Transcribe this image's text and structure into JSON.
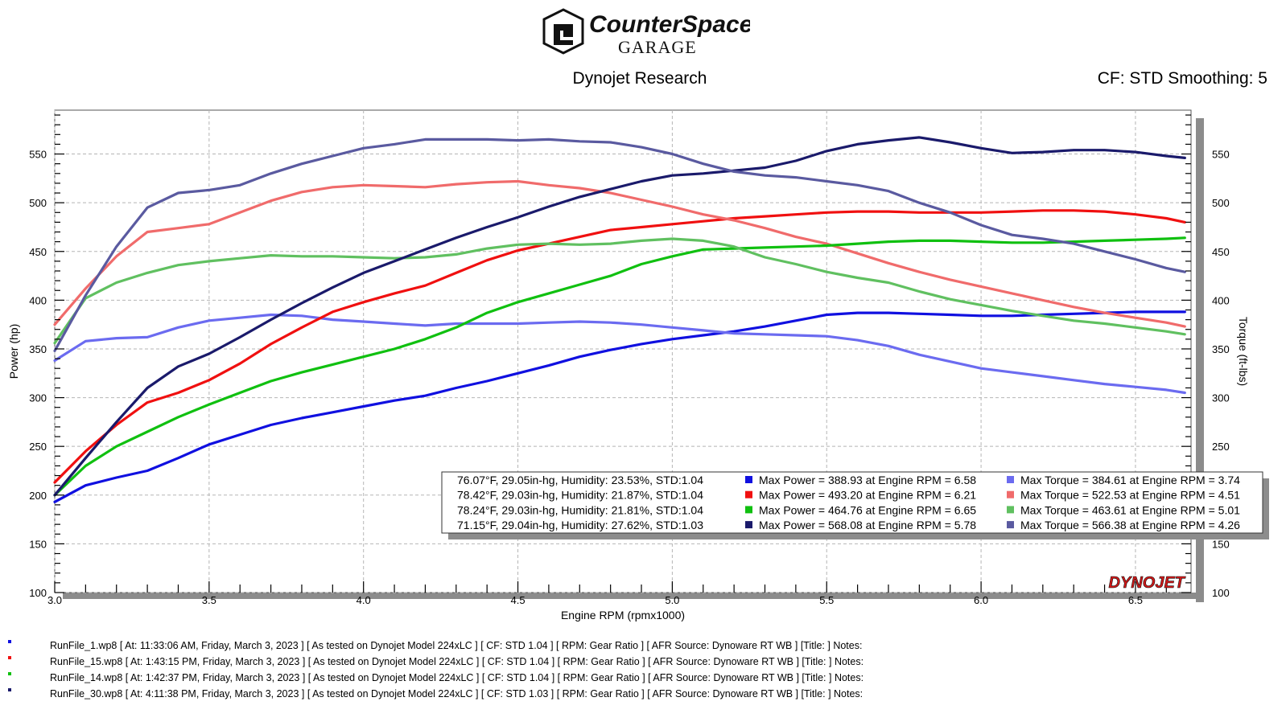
{
  "header": {
    "logo_line1": "CounterSpace",
    "logo_line2": "GARAGE",
    "subtitle": "Dynojet Research",
    "cf_info": "CF: STD Smoothing: 5"
  },
  "watermark": "DYNOJET",
  "colors": {
    "run1_power": "#1010e0",
    "run1_torque": "#6b6bf0",
    "run15_power": "#f01010",
    "run15_torque": "#f06b6b",
    "run14_power": "#10c010",
    "run14_torque": "#60c060",
    "run30_power": "#1a1a6b",
    "run30_torque": "#5a5aa0"
  },
  "chart_data": {
    "type": "line",
    "title": "",
    "xlabel": "Engine RPM (rpmx1000)",
    "ylabel": "Power (hp)",
    "y2label": "Torque (ft-lbs)",
    "xlim": [
      3.0,
      6.68
    ],
    "ylim": [
      100,
      595
    ],
    "xticks": [
      "3.0",
      "3.5",
      "4.0",
      "4.5",
      "5.0",
      "5.5",
      "6.0",
      "6.5"
    ],
    "yticks": [
      "100",
      "150",
      "200",
      "250",
      "300",
      "350",
      "400",
      "450",
      "500",
      "550"
    ],
    "grid": true,
    "x": [
      3.0,
      3.1,
      3.2,
      3.3,
      3.4,
      3.5,
      3.6,
      3.7,
      3.8,
      3.9,
      4.0,
      4.1,
      4.2,
      4.3,
      4.4,
      4.5,
      4.6,
      4.7,
      4.8,
      4.9,
      5.0,
      5.1,
      5.2,
      5.3,
      5.4,
      5.5,
      5.6,
      5.7,
      5.8,
      5.9,
      6.0,
      6.1,
      6.2,
      6.3,
      6.4,
      6.5,
      6.6,
      6.66
    ],
    "series": [
      {
        "color_key": "run1_power",
        "values": [
          193,
          210,
          218,
          225,
          238,
          252,
          262,
          272,
          279,
          285,
          291,
          297,
          302,
          310,
          317,
          325,
          333,
          342,
          349,
          355,
          360,
          364,
          368,
          373,
          379,
          385,
          387,
          387,
          386,
          385,
          384,
          384,
          385,
          386,
          387,
          388,
          388,
          388
        ]
      },
      {
        "color_key": "run1_torque",
        "values": [
          338,
          358,
          361,
          362,
          372,
          379,
          382,
          385,
          384,
          380,
          378,
          376,
          374,
          376,
          376,
          376,
          377,
          378,
          377,
          375,
          372,
          369,
          366,
          365,
          364,
          363,
          359,
          353,
          344,
          337,
          330,
          326,
          322,
          318,
          314,
          311,
          308,
          305
        ]
      },
      {
        "color_key": "run15_power",
        "values": [
          213,
          245,
          272,
          295,
          305,
          318,
          335,
          355,
          372,
          388,
          398,
          407,
          415,
          428,
          441,
          451,
          458,
          465,
          472,
          475,
          478,
          481,
          484,
          486,
          488,
          490,
          491,
          491,
          490,
          490,
          490,
          491,
          492,
          492,
          491,
          488,
          484,
          480
        ]
      },
      {
        "color_key": "run15_torque",
        "values": [
          375,
          412,
          445,
          470,
          474,
          478,
          490,
          502,
          511,
          516,
          518,
          517,
          516,
          519,
          521,
          522,
          518,
          515,
          510,
          503,
          496,
          488,
          482,
          474,
          465,
          458,
          448,
          438,
          429,
          421,
          414,
          407,
          400,
          393,
          387,
          382,
          377,
          373
        ]
      },
      {
        "color_key": "run14_power",
        "values": [
          200,
          230,
          250,
          265,
          280,
          293,
          305,
          317,
          326,
          334,
          342,
          350,
          360,
          372,
          387,
          398,
          407,
          416,
          425,
          437,
          445,
          452,
          453,
          454,
          455,
          456,
          458,
          460,
          461,
          461,
          460,
          459,
          459,
          460,
          461,
          462,
          463,
          464
        ]
      },
      {
        "color_key": "run14_torque",
        "values": [
          356,
          402,
          418,
          428,
          436,
          440,
          443,
          446,
          445,
          445,
          444,
          443,
          444,
          447,
          453,
          457,
          458,
          457,
          458,
          461,
          463,
          461,
          455,
          444,
          437,
          429,
          423,
          418,
          409,
          401,
          395,
          389,
          384,
          379,
          376,
          372,
          368,
          365
        ]
      },
      {
        "color_key": "run30_power",
        "values": [
          200,
          238,
          275,
          310,
          332,
          345,
          362,
          380,
          397,
          413,
          428,
          440,
          452,
          464,
          475,
          485,
          496,
          506,
          514,
          522,
          528,
          530,
          533,
          536,
          543,
          553,
          560,
          564,
          567,
          562,
          556,
          551,
          552,
          554,
          554,
          552,
          548,
          546
        ]
      },
      {
        "color_key": "run30_torque",
        "values": [
          348,
          405,
          455,
          495,
          510,
          513,
          518,
          530,
          540,
          548,
          556,
          560,
          565,
          565,
          565,
          564,
          565,
          563,
          562,
          557,
          550,
          540,
          532,
          528,
          526,
          522,
          518,
          512,
          500,
          490,
          477,
          467,
          463,
          458,
          450,
          442,
          433,
          429
        ]
      }
    ],
    "legend": {
      "placement": "bottom-right",
      "rows": [
        {
          "conditions": "76.07°F, 29.05in-hg, Humidity: 23.53%, STD:1.04",
          "power": "Max Power = 388.93 at Engine RPM = 6.58",
          "torque": "Max Torque = 384.61 at Engine RPM = 3.74",
          "power_key": "run1_power",
          "torque_key": "run1_torque"
        },
        {
          "conditions": "78.42°F, 29.03in-hg, Humidity: 21.87%, STD:1.04",
          "power": "Max Power = 493.20 at Engine RPM = 6.21",
          "torque": "Max Torque = 522.53 at Engine RPM = 4.51",
          "power_key": "run15_power",
          "torque_key": "run15_torque"
        },
        {
          "conditions": "78.24°F, 29.03in-hg, Humidity: 21.81%, STD:1.04",
          "power": "Max Power = 464.76 at Engine RPM = 6.65",
          "torque": "Max Torque = 463.61 at Engine RPM = 5.01",
          "power_key": "run14_power",
          "torque_key": "run14_torque"
        },
        {
          "conditions": "71.15°F, 29.04in-hg, Humidity: 27.62%, STD:1.03",
          "power": "Max Power = 568.08 at Engine RPM = 5.78",
          "torque": "Max Torque = 566.38 at Engine RPM = 4.26",
          "power_key": "run30_power",
          "torque_key": "run30_torque"
        }
      ]
    }
  },
  "runs": [
    {
      "text": "RunFile_1.wp8 [ At: 11:33:06 AM, Friday, March 3, 2023 ] [ As tested on Dynojet Model 224xLC ] [ CF: STD 1.04 ] [ RPM: Gear Ratio ] [ AFR Source: Dynoware RT WB ] [Title: ]  Notes:",
      "color_key": "run1_power"
    },
    {
      "text": "RunFile_15.wp8 [ At: 1:43:15 PM, Friday, March 3, 2023 ] [ As tested on Dynojet Model 224xLC ] [ CF: STD 1.04 ] [ RPM: Gear Ratio ] [ AFR Source: Dynoware RT WB ] [Title: ]  Notes:",
      "color_key": "run15_power"
    },
    {
      "text": "RunFile_14.wp8 [ At: 1:42:37 PM, Friday, March 3, 2023 ] [ As tested on Dynojet Model 224xLC ] [ CF: STD 1.04 ] [ RPM: Gear Ratio ] [ AFR Source: Dynoware RT WB ] [Title: ]  Notes:",
      "color_key": "run14_power"
    },
    {
      "text": "RunFile_30.wp8 [ At: 4:11:38 PM, Friday, March 3, 2023 ] [ As tested on Dynojet Model 224xLC ] [ CF: STD 1.03 ] [ RPM: Gear Ratio ] [ AFR Source: Dynoware RT WB ] [Title: ]  Notes:",
      "color_key": "run30_power"
    }
  ]
}
